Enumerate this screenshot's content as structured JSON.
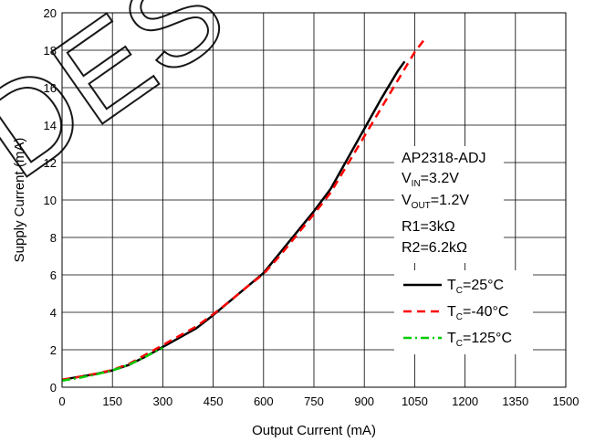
{
  "chart_data": {
    "type": "line",
    "xlabel": "Output Current (mA)",
    "ylabel": "Supply Current (mA)",
    "xlim": [
      0,
      1500
    ],
    "ylim": [
      0,
      20
    ],
    "x_ticks": [
      "0",
      "150",
      "300",
      "450",
      "600",
      "750",
      "900",
      "1050",
      "1200",
      "1350",
      "1500"
    ],
    "y_ticks": [
      "0",
      "2",
      "4",
      "6",
      "8",
      "10",
      "12",
      "14",
      "16",
      "18",
      "20"
    ],
    "grid": true,
    "legend_position": "right",
    "annotation": {
      "device": "AP2318-ADJ",
      "vin": {
        "main": "V",
        "sub": "IN",
        "rest": "=3.2V"
      },
      "vout": {
        "main": "V",
        "sub": "OUT",
        "rest": "=1.2V"
      },
      "r1": "R1=3kΩ",
      "r2": "R2=6.2kΩ"
    },
    "series": [
      {
        "name": "T_C=25°C",
        "label": {
          "main": "T",
          "sub": "C",
          "rest": "=25°C"
        },
        "color": "#000000",
        "style": "solid",
        "x": [
          0,
          50,
          100,
          150,
          200,
          250,
          300,
          350,
          400,
          450,
          500,
          550,
          600,
          650,
          700,
          750,
          800,
          850,
          900,
          950,
          1000,
          1020
        ],
        "y": [
          0.4,
          0.55,
          0.7,
          0.9,
          1.2,
          1.65,
          2.15,
          2.65,
          3.15,
          3.85,
          4.6,
          5.35,
          6.1,
          7.2,
          8.3,
          9.4,
          10.6,
          12.2,
          13.8,
          15.4,
          16.9,
          17.4
        ]
      },
      {
        "name": "T_C=-40°C",
        "label": {
          "main": "T",
          "sub": "C",
          "rest": "=-40°C"
        },
        "color": "#ff0000",
        "style": "dashed",
        "x": [
          0,
          50,
          100,
          150,
          200,
          250,
          300,
          350,
          400,
          450,
          500,
          550,
          600,
          650,
          700,
          750,
          800,
          850,
          900,
          950,
          1000,
          1050,
          1080
        ],
        "y": [
          0.4,
          0.55,
          0.72,
          0.92,
          1.25,
          1.75,
          2.25,
          2.75,
          3.25,
          3.9,
          4.6,
          5.35,
          6.05,
          7.05,
          8.15,
          9.25,
          10.4,
          11.9,
          13.4,
          14.9,
          16.4,
          17.9,
          18.6
        ]
      },
      {
        "name": "T_C=125°C",
        "label": {
          "main": "T",
          "sub": "C",
          "rest": "=125°C"
        },
        "color": "#00cc00",
        "style": "dashdot",
        "x": [
          0,
          50,
          100,
          150,
          200,
          250,
          300
        ],
        "y": [
          0.35,
          0.5,
          0.68,
          0.9,
          1.2,
          1.65,
          2.1
        ]
      }
    ],
    "watermark": "DES"
  }
}
